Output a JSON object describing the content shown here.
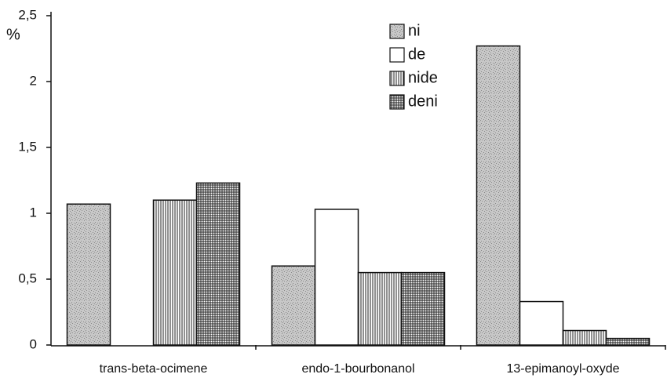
{
  "chart_data": {
    "type": "bar",
    "ylabel": "%",
    "categories": [
      "trans-beta-ocimene",
      "endo-1-bourbonanol",
      "13-epimanoyl-oxyde"
    ],
    "series": [
      {
        "name": "ni",
        "color": "#8a8a8a",
        "values": [
          1.07,
          0.6,
          2.27
        ]
      },
      {
        "name": "de",
        "color": "#ffffff",
        "values": [
          0,
          1.03,
          0.33
        ]
      },
      {
        "name": "nide",
        "color": "#222222",
        "values": [
          1.1,
          0.55,
          0.11
        ]
      },
      {
        "name": "deni",
        "color": "#222222",
        "values": [
          1.23,
          0.55,
          0.05
        ]
      }
    ],
    "ylim": [
      0,
      2.5
    ],
    "yticks": [
      0,
      {
        "value": 0.5,
        "label": "0,5"
      },
      1,
      {
        "value": 1.5,
        "label": "1,5"
      },
      2,
      {
        "value": 2.5,
        "label": "2,5"
      }
    ],
    "legend": "top"
  }
}
